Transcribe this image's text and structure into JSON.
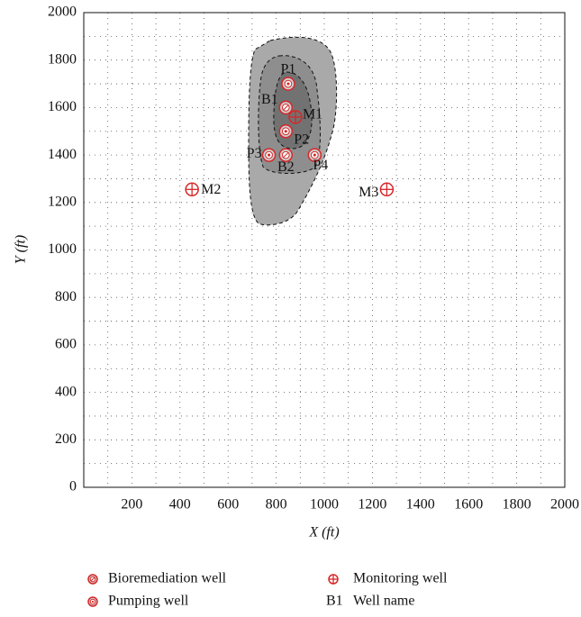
{
  "chart_data": {
    "type": "scatter",
    "xlabel": "X (ft)",
    "ylabel": "Y (ft)",
    "xlim": [
      0,
      2000
    ],
    "ylim": [
      0,
      2000
    ],
    "xticks": [
      200,
      400,
      600,
      800,
      1000,
      1200,
      1400,
      1600,
      1800,
      2000
    ],
    "yticks": [
      0,
      200,
      400,
      600,
      800,
      1000,
      1200,
      1400,
      1600,
      1800,
      2000
    ],
    "grid": true,
    "series": [
      {
        "name": "Bioremediation well",
        "color": "#d62728",
        "marker": "hatched",
        "x": [
          840,
          840
        ],
        "y": [
          1600,
          1400
        ],
        "labels": [
          "B1",
          "B2"
        ]
      },
      {
        "name": "Monitoring well",
        "color": "#d62728",
        "marker": "cross",
        "x": [
          880,
          450,
          1260
        ],
        "y": [
          1560,
          1255,
          1255
        ],
        "labels": [
          "M1",
          "M2",
          "M3"
        ]
      },
      {
        "name": "Pumping well",
        "color": "#d62728",
        "marker": "ring",
        "x": [
          850,
          840,
          770,
          960
        ],
        "y": [
          1700,
          1500,
          1400,
          1400
        ],
        "labels": [
          "P1",
          "P2",
          "P3",
          "P4"
        ]
      }
    ],
    "legend_note": {
      "symbol": "B1",
      "text": "Well name"
    }
  }
}
